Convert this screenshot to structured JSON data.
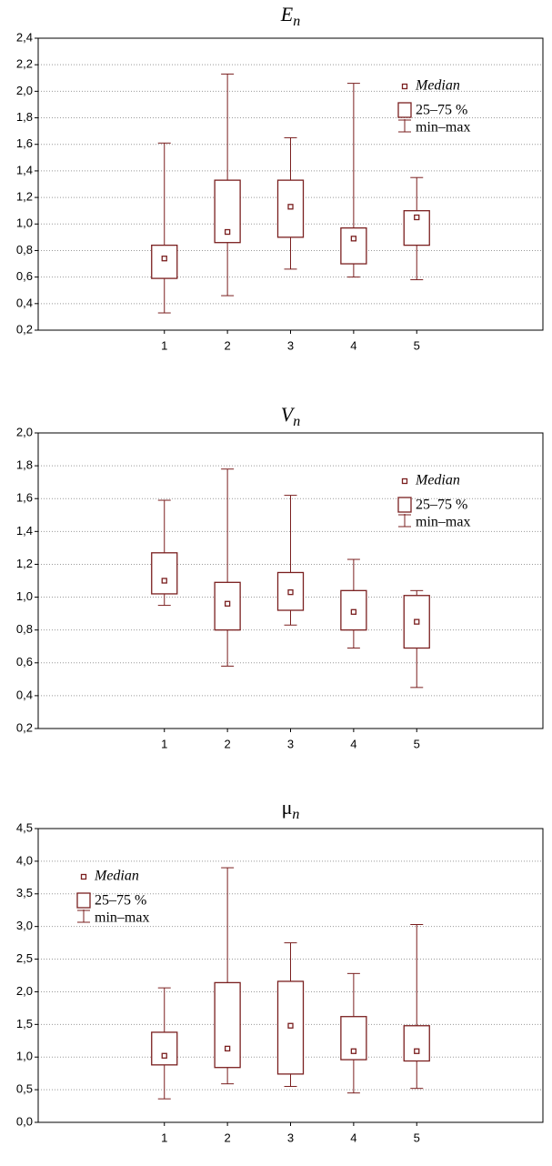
{
  "chart_data": [
    {
      "type": "box",
      "title": "E",
      "title_sub": "n",
      "color": "#7a1f1f",
      "grid": true,
      "legend_position": "top-right",
      "legend": {
        "median": "Median",
        "box": "25–75 %",
        "whisker": "min–max"
      },
      "x": [
        1,
        2,
        3,
        4,
        5
      ],
      "xlim": [
        -1,
        7
      ],
      "xticks": [
        1,
        2,
        3,
        4,
        5
      ],
      "ylim": [
        0.2,
        2.4
      ],
      "yticks": [
        {
          "value": 0.2,
          "label": "0,2"
        },
        {
          "value": 0.4,
          "label": "0,4"
        },
        {
          "value": 0.6,
          "label": "0,6"
        },
        {
          "value": 0.8,
          "label": "0,8"
        },
        {
          "value": 1.0,
          "label": "1,0"
        },
        {
          "value": 1.2,
          "label": "1,2"
        },
        {
          "value": 1.4,
          "label": "1,4"
        },
        {
          "value": 1.6,
          "label": "1,6"
        },
        {
          "value": 1.8,
          "label": "1,8"
        },
        {
          "value": 2.0,
          "label": "2,0"
        },
        {
          "value": 2.2,
          "label": "2,2"
        },
        {
          "value": 2.4,
          "label": "2,4"
        }
      ],
      "min": [
        0.33,
        0.46,
        0.66,
        0.6,
        0.58
      ],
      "q1": [
        0.59,
        0.86,
        0.9,
        0.7,
        0.84
      ],
      "median": [
        0.74,
        0.94,
        1.13,
        0.89,
        1.05
      ],
      "q3": [
        0.84,
        1.33,
        1.33,
        0.97,
        1.1
      ],
      "max": [
        1.61,
        2.13,
        1.65,
        2.06,
        1.35
      ]
    },
    {
      "type": "box",
      "title": "V",
      "title_sub": "n",
      "color": "#7a1f1f",
      "grid": true,
      "legend_position": "top-right",
      "legend": {
        "median": "Median",
        "box": "25–75 %",
        "whisker": "min–max"
      },
      "x": [
        1,
        2,
        3,
        4,
        5
      ],
      "xlim": [
        -1,
        7
      ],
      "xticks": [
        1,
        2,
        3,
        4,
        5
      ],
      "ylim": [
        0.2,
        2.0
      ],
      "yticks": [
        {
          "value": 0.2,
          "label": "0,2"
        },
        {
          "value": 0.4,
          "label": "0,4"
        },
        {
          "value": 0.6,
          "label": "0,6"
        },
        {
          "value": 0.8,
          "label": "0,8"
        },
        {
          "value": 1.0,
          "label": "1,0"
        },
        {
          "value": 1.2,
          "label": "1,2"
        },
        {
          "value": 1.4,
          "label": "1,4"
        },
        {
          "value": 1.6,
          "label": "1,6"
        },
        {
          "value": 1.8,
          "label": "1,8"
        },
        {
          "value": 2.0,
          "label": "2,0"
        }
      ],
      "min": [
        0.95,
        0.58,
        0.83,
        0.69,
        0.45
      ],
      "q1": [
        1.02,
        0.8,
        0.92,
        0.8,
        0.69
      ],
      "median": [
        1.1,
        0.96,
        1.03,
        0.91,
        0.85
      ],
      "q3": [
        1.27,
        1.09,
        1.15,
        1.04,
        1.01
      ],
      "max": [
        1.59,
        1.78,
        1.62,
        1.23,
        1.04
      ]
    },
    {
      "type": "box",
      "title": "μ",
      "title_sub": "n",
      "color": "#7a1f1f",
      "grid": true,
      "legend_position": "top-left",
      "legend": {
        "median": "Median",
        "box": "25–75 %",
        "whisker": "min–max"
      },
      "x": [
        1,
        2,
        3,
        4,
        5
      ],
      "xlim": [
        -1,
        7
      ],
      "xticks": [
        1,
        2,
        3,
        4,
        5
      ],
      "ylim": [
        0,
        4.5
      ],
      "yticks": [
        {
          "value": 0,
          "label": "0,0"
        },
        {
          "value": 0.5,
          "label": "0,5"
        },
        {
          "value": 1.0,
          "label": "1,0"
        },
        {
          "value": 1.5,
          "label": "1,5"
        },
        {
          "value": 2.0,
          "label": "2,0"
        },
        {
          "value": 2.5,
          "label": "2,5"
        },
        {
          "value": 3.0,
          "label": "3,0"
        },
        {
          "value": 3.5,
          "label": "3,5"
        },
        {
          "value": 4.0,
          "label": "4,0"
        },
        {
          "value": 4.5,
          "label": "4,5"
        }
      ],
      "min": [
        0.36,
        0.59,
        0.55,
        0.45,
        0.52
      ],
      "q1": [
        0.88,
        0.84,
        0.74,
        0.96,
        0.94
      ],
      "median": [
        1.02,
        1.13,
        1.48,
        1.09,
        1.09
      ],
      "q3": [
        1.38,
        2.14,
        2.16,
        1.62,
        1.48
      ],
      "max": [
        2.06,
        3.9,
        2.75,
        2.28,
        3.03
      ]
    }
  ]
}
